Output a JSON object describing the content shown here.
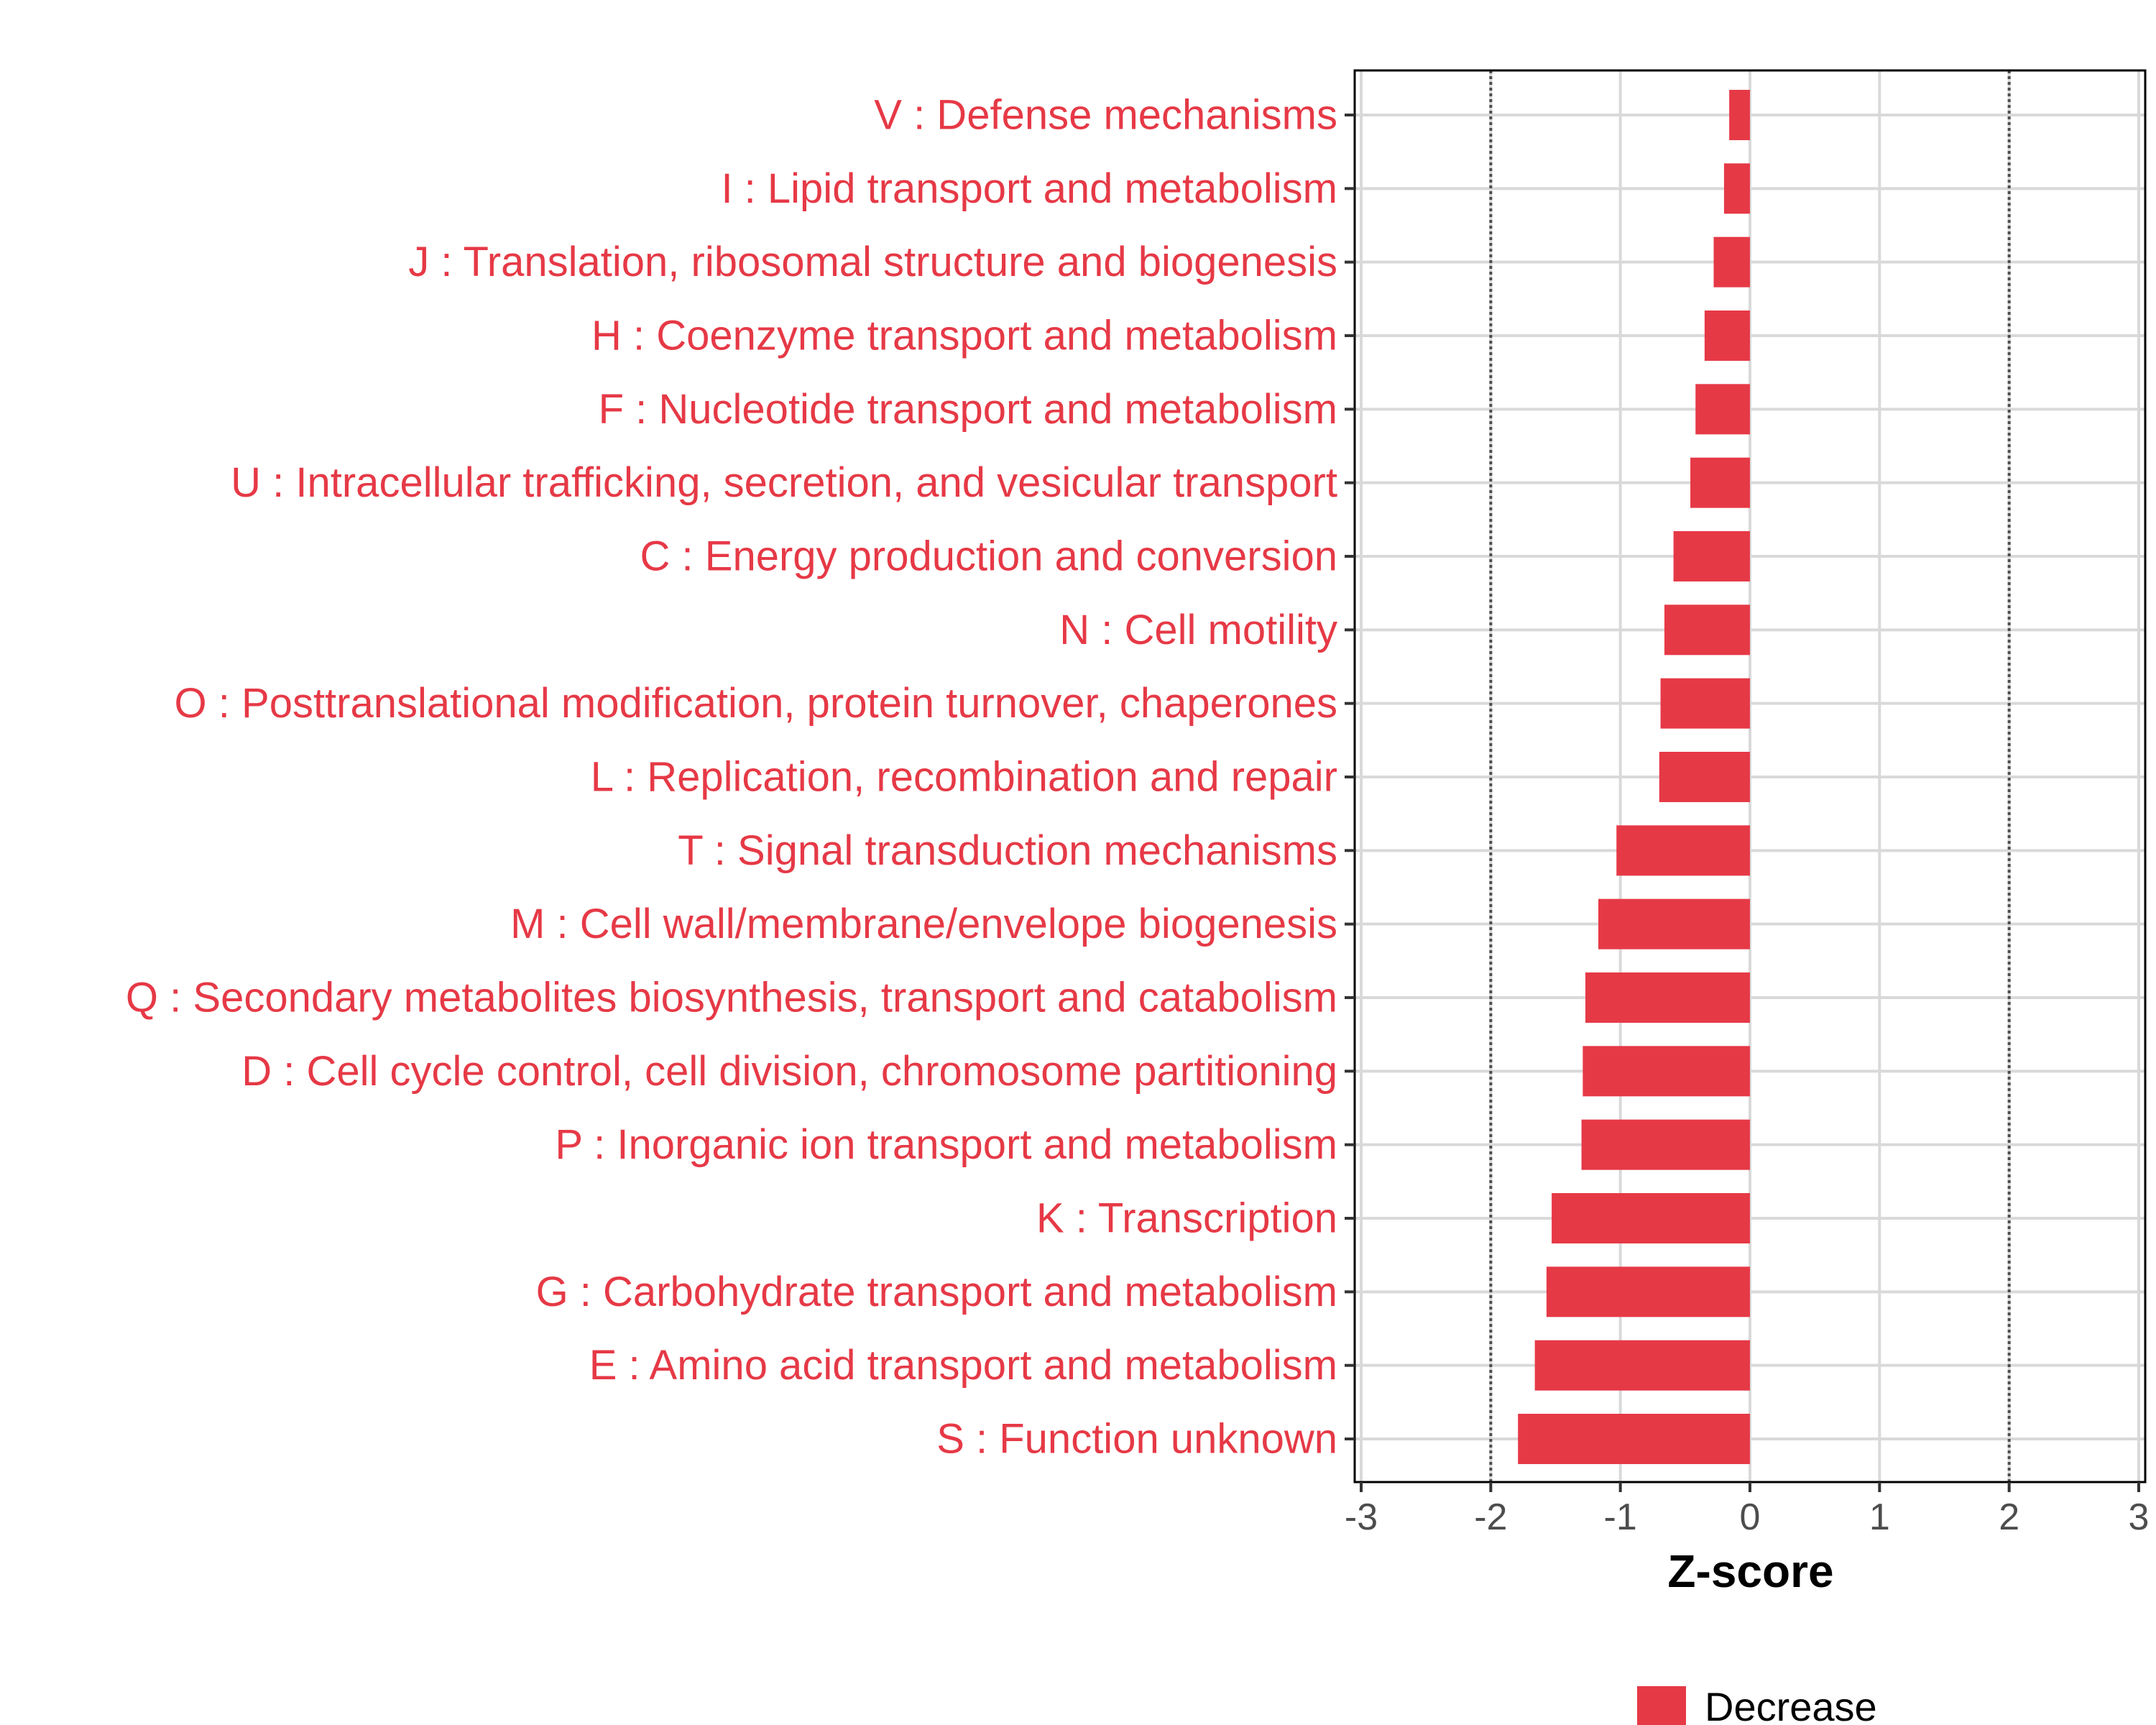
{
  "chart_data": {
    "type": "bar",
    "orientation": "horizontal",
    "categories": [
      "V : Defense mechanisms",
      "I : Lipid transport and metabolism",
      "J : Translation, ribosomal structure and biogenesis",
      "H : Coenzyme transport and metabolism",
      "F : Nucleotide transport and metabolism",
      "U : Intracellular trafficking, secretion, and vesicular transport",
      "C : Energy production and conversion",
      "N : Cell motility",
      "O : Posttranslational modification, protein turnover, chaperones",
      "L : Replication, recombination and repair",
      "T : Signal transduction mechanisms",
      "M : Cell wall/membrane/envelope biogenesis",
      "Q : Secondary metabolites biosynthesis, transport and catabolism",
      "D : Cell cycle control, cell division, chromosome partitioning",
      "P : Inorganic ion transport and metabolism",
      "K : Transcription",
      "G : Carbohydrate transport and metabolism",
      "E : Amino acid transport and metabolism",
      "S : Function unknown"
    ],
    "series": [
      {
        "name": "Decrease",
        "values": [
          -0.16,
          -0.2,
          -0.28,
          -0.35,
          -0.42,
          -0.46,
          -0.59,
          -0.66,
          -0.69,
          -0.7,
          -1.03,
          -1.17,
          -1.27,
          -1.29,
          -1.3,
          -1.53,
          -1.57,
          -1.66,
          -1.79
        ]
      }
    ],
    "xlabel": "Z-score",
    "ylabel": "",
    "xlim": [
      -3.05,
      3.05
    ],
    "xticks": [
      -3,
      -2,
      -1,
      0,
      1,
      2,
      3
    ],
    "xtick_labels": [
      "-3",
      "-2",
      "-1",
      "0",
      "1",
      "2",
      "3"
    ],
    "reference_lines": [
      -2,
      2
    ],
    "grid": true,
    "legend": {
      "position": "bottom",
      "entries": [
        {
          "label": "Decrease",
          "color": "#e63946"
        }
      ]
    },
    "colors": {
      "decrease": "#e63946",
      "label_text": "#e63946",
      "grid": "#d9d9d9",
      "frame": "#000000",
      "reference_line": "#4d4d4d"
    }
  }
}
